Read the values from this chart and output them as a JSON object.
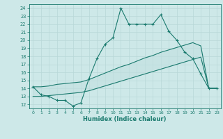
{
  "xlabel": "Humidex (Indice chaleur)",
  "bg_color": "#cde8e8",
  "line_color": "#1a7a6e",
  "grid_color": "#b8d8d8",
  "xlim": [
    -0.5,
    23.5
  ],
  "ylim": [
    11.5,
    24.5
  ],
  "xticks": [
    0,
    1,
    2,
    3,
    4,
    5,
    6,
    7,
    8,
    9,
    10,
    11,
    12,
    13,
    14,
    15,
    16,
    17,
    18,
    19,
    20,
    21,
    22,
    23
  ],
  "yticks": [
    12,
    13,
    14,
    15,
    16,
    17,
    18,
    19,
    20,
    21,
    22,
    23,
    24
  ],
  "series1_x": [
    0,
    1,
    2,
    3,
    4,
    5,
    6,
    7,
    8,
    9,
    10,
    11,
    12,
    13,
    14,
    15,
    16,
    17,
    18,
    19,
    20,
    21,
    22,
    23
  ],
  "series1_y": [
    14.2,
    13.2,
    13.0,
    12.5,
    12.5,
    11.8,
    12.2,
    15.2,
    17.7,
    19.5,
    20.3,
    24.0,
    22.0,
    22.0,
    22.0,
    22.0,
    23.2,
    21.1,
    20.0,
    18.5,
    17.7,
    15.8,
    14.0,
    14.0
  ],
  "series2_x": [
    0,
    1,
    2,
    3,
    4,
    5,
    6,
    7,
    8,
    9,
    10,
    11,
    12,
    13,
    14,
    15,
    16,
    17,
    18,
    19,
    20,
    21,
    22,
    23
  ],
  "series2_y": [
    13.0,
    13.0,
    13.1,
    13.2,
    13.3,
    13.4,
    13.5,
    13.7,
    14.0,
    14.3,
    14.6,
    14.9,
    15.2,
    15.5,
    15.8,
    16.1,
    16.4,
    16.7,
    17.0,
    17.3,
    17.6,
    17.9,
    14.0,
    14.0
  ],
  "series3_x": [
    0,
    1,
    2,
    3,
    4,
    5,
    6,
    7,
    8,
    9,
    10,
    11,
    12,
    13,
    14,
    15,
    16,
    17,
    18,
    19,
    20,
    21,
    22,
    23
  ],
  "series3_y": [
    14.2,
    14.2,
    14.3,
    14.5,
    14.6,
    14.7,
    14.8,
    15.1,
    15.5,
    15.9,
    16.3,
    16.7,
    17.0,
    17.4,
    17.8,
    18.1,
    18.5,
    18.8,
    19.1,
    19.4,
    19.7,
    19.3,
    14.0,
    14.0
  ]
}
